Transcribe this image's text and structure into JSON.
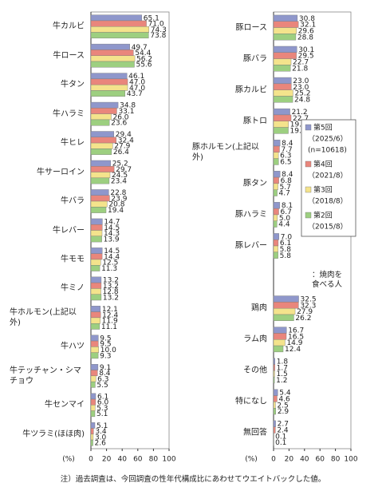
{
  "chart_data": [
    {
      "type": "bar",
      "orientation": "horizontal",
      "categories": [
        "牛カルビ",
        "牛ロース",
        "牛タン",
        "牛ハラミ",
        "牛ヒレ",
        "牛サーロイン",
        "牛バラ",
        "牛レバー",
        "牛モモ",
        "牛ミノ",
        "牛ホルモン(上記以外)",
        "牛ハツ",
        "牛テッチャン・シマチョウ",
        "牛センマイ",
        "牛ツラミ(ほほ肉)"
      ],
      "series": [
        {
          "color": "#8f97cb",
          "values": [
            65.1,
            49.7,
            46.1,
            34.8,
            29.4,
            25.2,
            22.8,
            14.7,
            14.5,
            13.2,
            12.1,
            9.5,
            9.1,
            6.1,
            5.1
          ],
          "value_labels": [
            "65.1",
            "49.7",
            "46.1",
            "34.8",
            "29.4",
            "25.2",
            "22.8",
            "14.7",
            "14.5",
            "13.2",
            "12.1",
            "9.5",
            "9.1",
            "6.1",
            "5.1"
          ]
        },
        {
          "color": "#e9867c",
          "values": [
            71.0,
            54.4,
            47.0,
            33.1,
            32.4,
            29.7,
            23.9,
            14.5,
            14.4,
            13.2,
            12.4,
            9.5,
            8.4,
            6.0,
            3.4
          ],
          "value_labels": [
            "71.0",
            "54.4",
            "47.0",
            "33.1",
            "32.4",
            "29.7",
            "23.9",
            "14.5",
            "14.4",
            "13.2",
            "12.4",
            "9.5",
            "8.4",
            "6.0",
            "3.4"
          ]
        },
        {
          "color": "#f4e38c",
          "values": [
            74.3,
            56.2,
            47.0,
            26.0,
            27.9,
            24.5,
            20.8,
            14.3,
            12.5,
            12.8,
            11.9,
            10.0,
            6.3,
            5.3,
            3.0
          ],
          "value_labels": [
            "74.3",
            "56.2",
            "47.0",
            "26.0",
            "27.9",
            "24.5",
            "20.8",
            "14.3",
            "12.5",
            "12.8",
            "11.9",
            "10.0",
            "6.3",
            "5.3",
            "3.0"
          ]
        },
        {
          "color": "#9dcf80",
          "values": [
            73.8,
            55.6,
            43.7,
            23.6,
            26.4,
            23.4,
            19.4,
            13.9,
            11.3,
            13.2,
            11.1,
            9.3,
            5.5,
            5.1,
            2.6
          ],
          "value_labels": [
            "73.8",
            "55.6",
            "43.7",
            "23.6",
            "26.4",
            "23.4",
            "19.4",
            "13.9",
            "11.3",
            "13.2",
            "11.1",
            "9.3",
            "5.5",
            "5.1",
            "2.6"
          ]
        }
      ],
      "xlim": [
        0,
        100
      ],
      "xticks": [
        0,
        20,
        40,
        60,
        80,
        100
      ],
      "xlabel": "(%)",
      "legend": false
    },
    {
      "type": "bar",
      "orientation": "horizontal",
      "categories": [
        "豚ロース",
        "豚バラ",
        "豚カルビ",
        "豚トロ",
        "豚ホルモン(上記以外)",
        "豚タン",
        "豚ハラミ",
        "豚レバー",
        null,
        "鶏肉",
        "ラム肉",
        "その他",
        "特になし",
        "無回答"
      ],
      "series": [
        {
          "name": "第5回",
          "notes": [
            "（2025/6）",
            "(n=10618)"
          ],
          "color": "#8f97cb",
          "values": [
            30.8,
            30.1,
            23.0,
            21.2,
            8.4,
            8.4,
            8.1,
            7.0,
            null,
            32.5,
            16.7,
            1.8,
            5.4,
            2.7
          ],
          "value_labels": [
            "30.8",
            "30.1",
            "23.0",
            "21.2",
            "8.4",
            "8.4",
            "8.1",
            "7.0",
            null,
            "32.5",
            "16.7",
            "1.8",
            "5.4",
            "2.7"
          ]
        },
        {
          "name": "第4回",
          "notes": [
            "（2021/8）"
          ],
          "color": "#e9867c",
          "values": [
            32.1,
            29.5,
            23.0,
            22.7,
            7.7,
            6.8,
            6.7,
            6.1,
            null,
            32.3,
            16.5,
            1.7,
            4.6,
            2.4
          ],
          "value_labels": [
            "32.1",
            "29.5",
            "23.0",
            "22.7",
            "7.7",
            "6.8",
            "6.7",
            "6.1",
            null,
            "32.3",
            "16.5",
            "1.7",
            "4.6",
            "2.4"
          ]
        },
        {
          "name": "第3回",
          "notes": [
            "（2018/8）"
          ],
          "color": "#f4e38c",
          "values": [
            29.6,
            22.7,
            25.2,
            19.3,
            6.3,
            5.7,
            5.0,
            5.8,
            null,
            27.9,
            14.9,
            1.5,
            2.5,
            0.1
          ],
          "value_labels": [
            "29.6",
            "22.7",
            "25.2",
            "19.3",
            "6.3",
            "5.7",
            "5.0",
            "5.8",
            null,
            "27.9",
            "14.9",
            "1.5",
            "2.5",
            "0.1"
          ]
        },
        {
          "name": "第2回",
          "notes": [
            "（2015/8）"
          ],
          "color": "#9dcf80",
          "values": [
            28.8,
            21.8,
            24.8,
            19.1,
            6.5,
            4.7,
            4.4,
            5.8,
            null,
            26.2,
            12.4,
            1.2,
            2.9,
            0.1
          ],
          "value_labels": [
            "28.8",
            "21.8",
            "24.8",
            "19.1",
            "6.5",
            "4.7",
            "4.4",
            "5.8",
            null,
            "26.2",
            "12.4",
            "1.2",
            "2.9",
            "0.1"
          ]
        }
      ],
      "annotation": "：焼肉を食べる人",
      "xlim": [
        0,
        100
      ],
      "xticks": [
        0,
        20,
        40,
        60,
        80,
        100
      ],
      "xlabel": "(%)",
      "legend": true,
      "legend_position": "right"
    }
  ],
  "note": "注）過去調査は、今回調査の性年代構成比にあわせてウエイトバックした値。"
}
